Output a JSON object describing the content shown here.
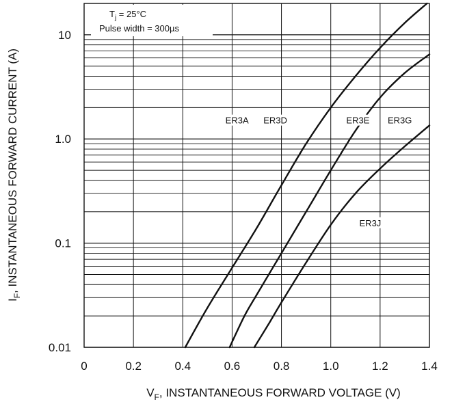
{
  "chart_data": {
    "type": "line",
    "title": "",
    "xlabel": {
      "main": "V",
      "sub": "F",
      "rest": ", INSTANTANEOUS FORWARD VOLTAGE (V)"
    },
    "ylabel": {
      "main": "I",
      "sub": "F",
      "rest": ", INSTANTANEOUS FORWARD CURRENT (A)"
    },
    "xlim": [
      0,
      1.4
    ],
    "ylim": [
      0.01,
      20
    ],
    "yscale": "log",
    "grid": true,
    "x_ticks": [
      {
        "value": 0,
        "label": "0"
      },
      {
        "value": 0.2,
        "label": "0.2"
      },
      {
        "value": 0.4,
        "label": "0.4"
      },
      {
        "value": 0.6,
        "label": "0.6"
      },
      {
        "value": 0.8,
        "label": "0.8"
      },
      {
        "value": 1.0,
        "label": "1.0"
      },
      {
        "value": 1.2,
        "label": "1.2"
      },
      {
        "value": 1.4,
        "label": "1.4"
      }
    ],
    "y_ticks": [
      {
        "value": 0.01,
        "label": "0.01"
      },
      {
        "value": 0.1,
        "label": "0.1"
      },
      {
        "value": 1.0,
        "label": "1.0"
      },
      {
        "value": 10,
        "label": "10"
      }
    ],
    "annotation": {
      "line1_main": "T",
      "line1_sub": "j",
      "line1_rest": " = 25°C",
      "line2": "Pulse width = 300µs"
    },
    "series": [
      {
        "labels": [
          "ER3A",
          "ER3D"
        ],
        "x": [
          0.41,
          0.5,
          0.6,
          0.7,
          0.8,
          0.9,
          1.0,
          1.1,
          1.2,
          1.3,
          1.39
        ],
        "y": [
          0.01,
          0.024,
          0.058,
          0.14,
          0.36,
          0.9,
          2.0,
          4.0,
          7.5,
          13.0,
          20.0
        ]
      },
      {
        "labels": [
          "ER3E",
          "ER3G"
        ],
        "x": [
          0.59,
          0.65,
          0.7,
          0.8,
          0.9,
          1.0,
          1.1,
          1.2,
          1.3,
          1.4
        ],
        "y": [
          0.01,
          0.02,
          0.032,
          0.08,
          0.2,
          0.5,
          1.2,
          2.5,
          4.3,
          6.5
        ]
      },
      {
        "labels": [
          "ER3J"
        ],
        "x": [
          0.69,
          0.75,
          0.8,
          0.9,
          1.0,
          1.1,
          1.2,
          1.3,
          1.4
        ],
        "y": [
          0.01,
          0.017,
          0.027,
          0.065,
          0.15,
          0.3,
          0.52,
          0.85,
          1.35
        ]
      }
    ],
    "curve_labels": [
      {
        "text": "ER3A",
        "x": 0.62,
        "y": 1.45
      },
      {
        "text": "ER3D",
        "x": 0.775,
        "y": 1.45
      },
      {
        "text": "ER3E",
        "x": 1.11,
        "y": 1.45
      },
      {
        "text": "ER3G",
        "x": 1.28,
        "y": 1.45
      },
      {
        "text": "ER3J",
        "x": 1.16,
        "y": 0.15
      }
    ]
  }
}
